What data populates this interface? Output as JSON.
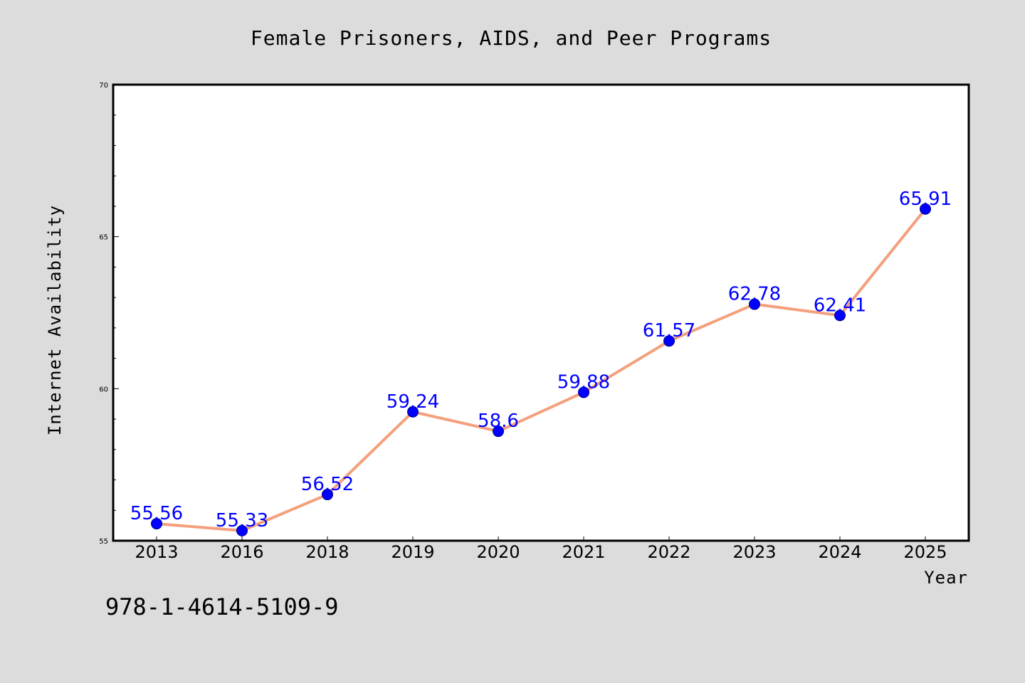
{
  "chart_data": {
    "type": "line",
    "title": "Female Prisoners, AIDS, and Peer Programs",
    "xlabel": "Year",
    "ylabel": "Internet Availability",
    "categories": [
      "2013",
      "2016",
      "2018",
      "2019",
      "2020",
      "2021",
      "2022",
      "2023",
      "2024",
      "2025"
    ],
    "series": [
      {
        "values": [
          55.56,
          55.33,
          56.52,
          59.24,
          58.6,
          59.88,
          61.57,
          62.78,
          62.41,
          65.91
        ],
        "data_labels": [
          "55.56",
          "55.33",
          "56.52",
          "59.24",
          "58.6",
          "59.88",
          "61.57",
          "62.78",
          "62.41",
          "65.91"
        ]
      }
    ],
    "ylim": [
      55,
      70
    ],
    "yticks": [
      "55",
      "60",
      "65",
      "70"
    ],
    "grid": false,
    "legend": "none",
    "colors": {
      "background": "#dcdcdc",
      "plot_background": "#ffffff",
      "line": "#f4a07c",
      "marker": "#0000ff",
      "marker_edge": "#00008b",
      "data_label": "#0000ff"
    }
  },
  "annotation": {
    "isbn": "978-1-4614-5109-9"
  }
}
